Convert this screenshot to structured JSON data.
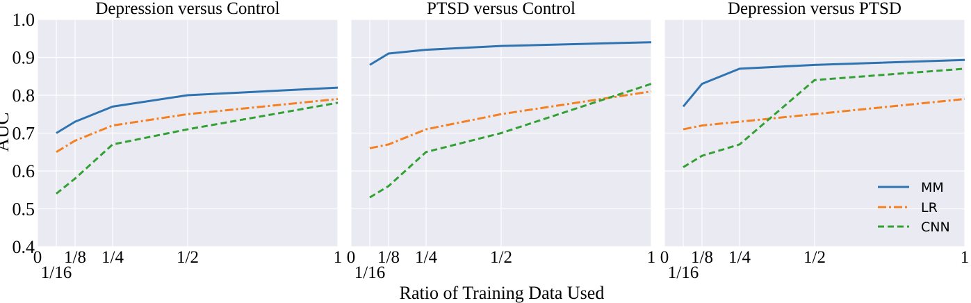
{
  "chart_data": {
    "type": "line",
    "ylabel": "AUC",
    "xlabel": "Ratio of Training Data Used",
    "xlim": [
      0,
      1
    ],
    "ylim": [
      0.4,
      1.0
    ],
    "x_ticks": [
      {
        "value": 0,
        "label": "0"
      },
      {
        "value": 0.0625,
        "label": "1/16"
      },
      {
        "value": 0.125,
        "label": "1/8"
      },
      {
        "value": 0.25,
        "label": "1/4"
      },
      {
        "value": 0.5,
        "label": "1/2"
      },
      {
        "value": 1,
        "label": "1"
      }
    ],
    "y_ticks": [
      {
        "value": 0.4,
        "label": "0.4"
      },
      {
        "value": 0.5,
        "label": "0.5"
      },
      {
        "value": 0.6,
        "label": "0.6"
      },
      {
        "value": 0.7,
        "label": "0.7"
      },
      {
        "value": 0.8,
        "label": "0.8"
      },
      {
        "value": 0.9,
        "label": "0.9"
      },
      {
        "value": 1.0,
        "label": "1.0"
      }
    ],
    "legend": {
      "placement": "bottom-right",
      "entries": [
        "MM",
        "LR",
        "CNN"
      ]
    },
    "series_styles": {
      "MM": {
        "color": "#2f74b1",
        "dash": "solid"
      },
      "LR": {
        "color": "#f58021",
        "dash": "dashdot"
      },
      "CNN": {
        "color": "#32a033",
        "dash": "dashed"
      }
    },
    "x": [
      0.0625,
      0.125,
      0.25,
      0.5,
      1
    ],
    "panels": [
      {
        "title": "Depression versus Control",
        "series": [
          {
            "name": "MM",
            "values": [
              0.7,
              0.73,
              0.77,
              0.8,
              0.82
            ]
          },
          {
            "name": "LR",
            "values": [
              0.65,
              0.68,
              0.72,
              0.75,
              0.79
            ]
          },
          {
            "name": "CNN",
            "values": [
              0.54,
              0.58,
              0.67,
              0.71,
              0.78
            ]
          }
        ]
      },
      {
        "title": "PTSD versus Control",
        "series": [
          {
            "name": "MM",
            "values": [
              0.88,
              0.91,
              0.92,
              0.93,
              0.94
            ]
          },
          {
            "name": "LR",
            "values": [
              0.66,
              0.67,
              0.71,
              0.75,
              0.81
            ]
          },
          {
            "name": "CNN",
            "values": [
              0.53,
              0.56,
              0.65,
              0.7,
              0.83
            ]
          }
        ]
      },
      {
        "title": "Depression versus PTSD",
        "series": [
          {
            "name": "MM",
            "values": [
              0.77,
              0.83,
              0.87,
              0.88,
              0.893
            ]
          },
          {
            "name": "LR",
            "values": [
              0.71,
              0.72,
              0.73,
              0.75,
              0.79
            ]
          },
          {
            "name": "CNN",
            "values": [
              0.61,
              0.64,
              0.67,
              0.84,
              0.87
            ]
          }
        ]
      }
    ]
  }
}
